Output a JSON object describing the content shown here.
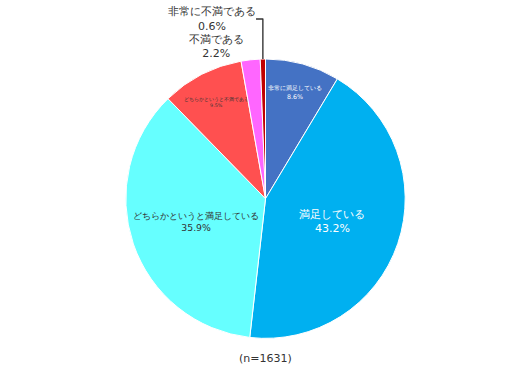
{
  "chart_data": {
    "type": "pie",
    "categories": [
      "非常に満足している",
      "満足している",
      "どちらかというと満足している",
      "どちらかというと不満である",
      "不満である",
      "非常に不満である"
    ],
    "values": [
      8.6,
      43.2,
      35.9,
      9.5,
      2.2,
      0.6
    ],
    "value_labels": [
      "8.6%",
      "43.2%",
      "35.9%",
      "9.5%",
      "2.2%",
      "0.6%"
    ],
    "colors": [
      "#4472c4",
      "#00b0f0",
      "#66ffff",
      "#ff5050",
      "#ff66ff",
      "#c00000"
    ],
    "data_labels": true,
    "annotations": [
      "(n=1631)"
    ]
  }
}
